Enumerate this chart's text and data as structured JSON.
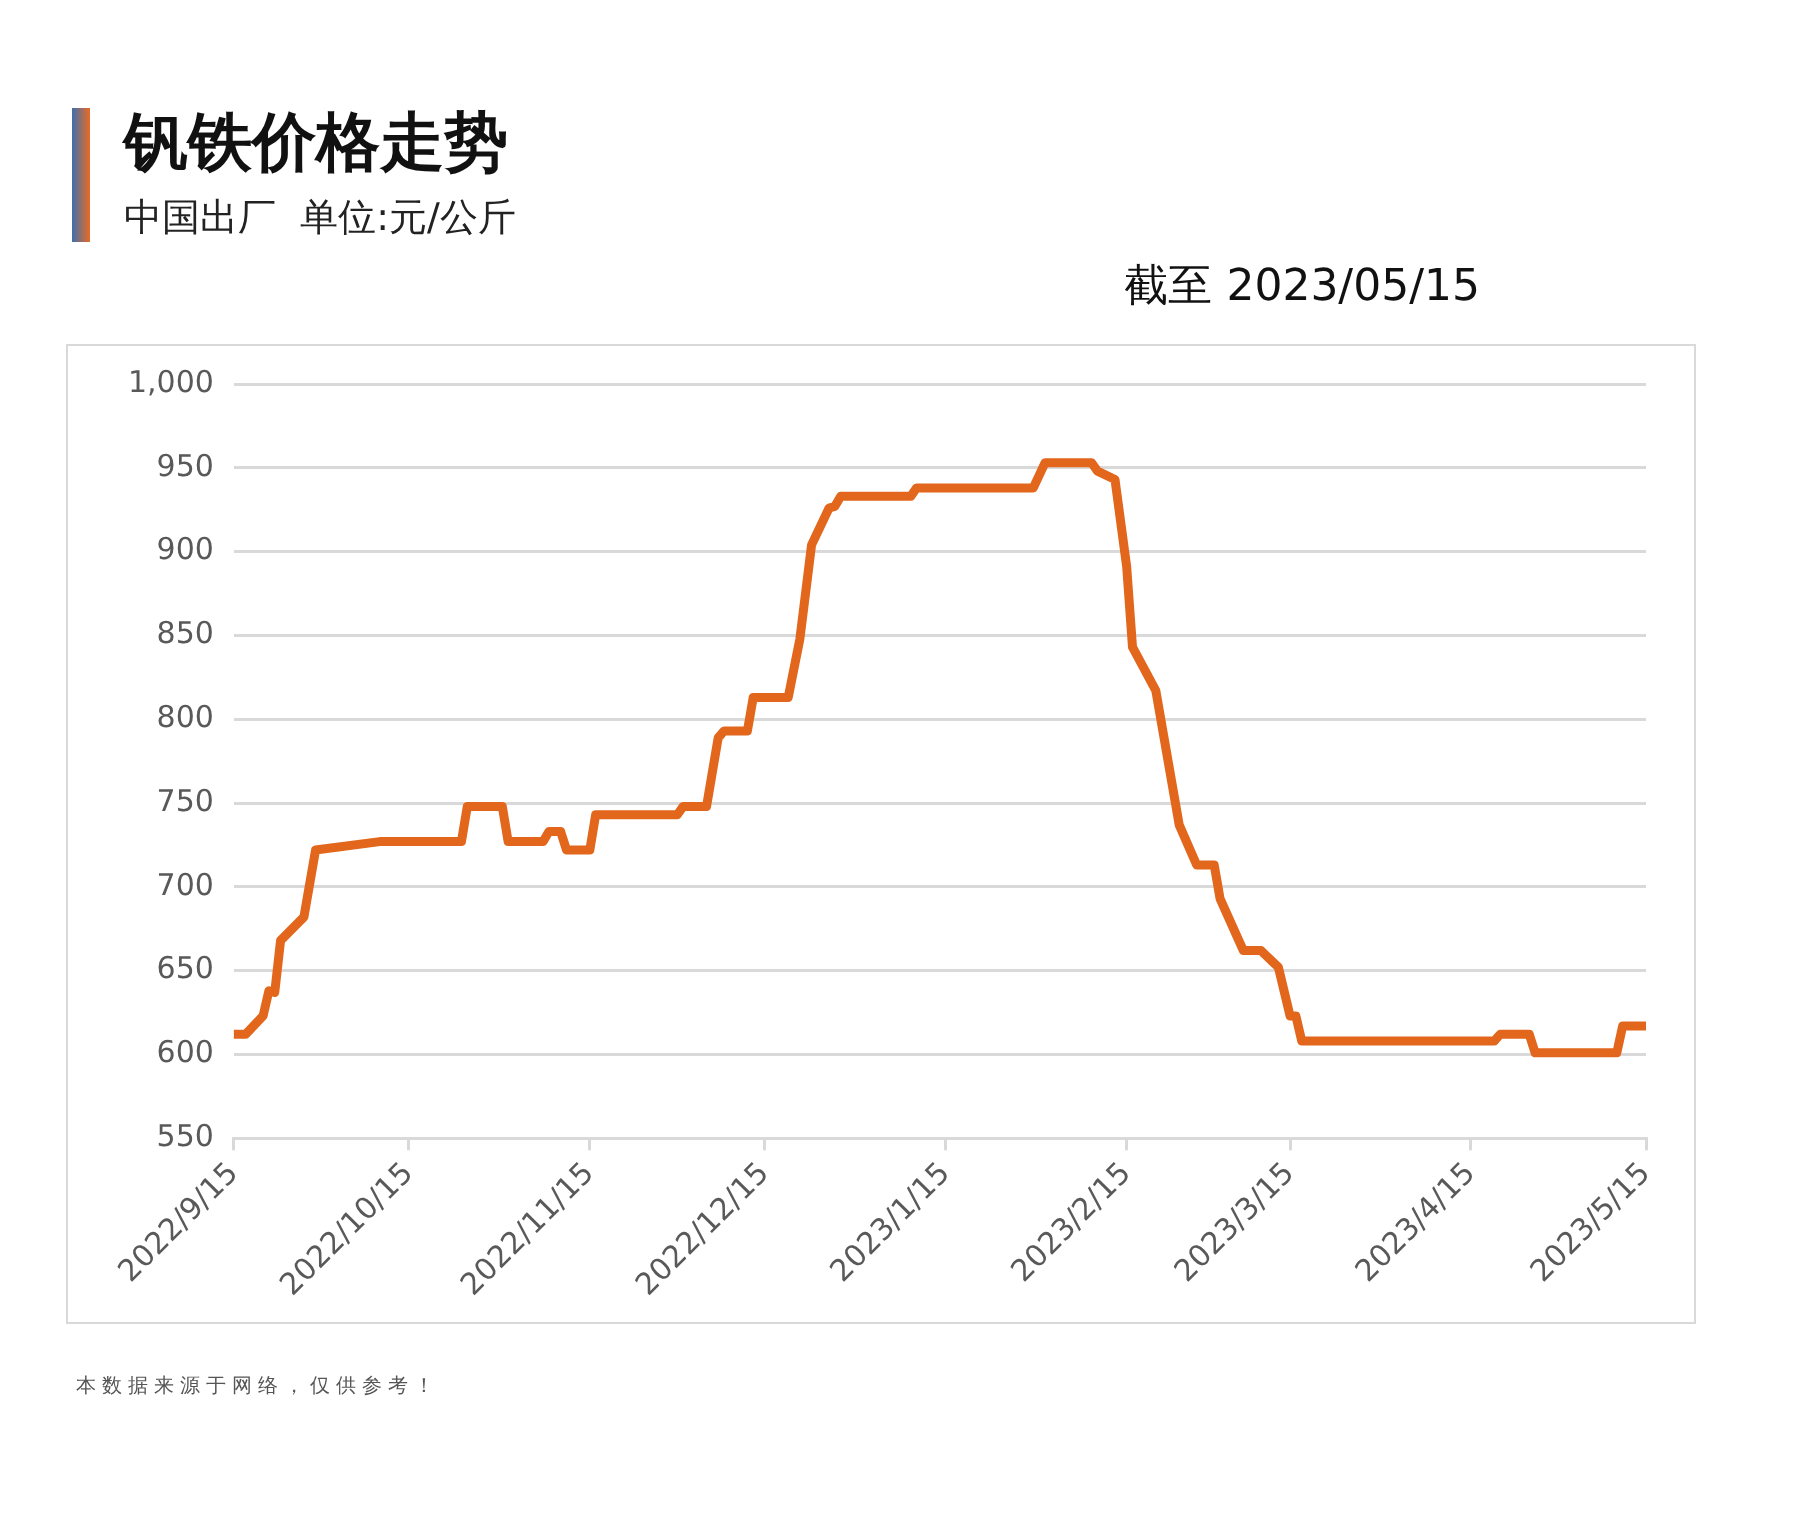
{
  "chart_data": {
    "type": "line",
    "title": "钒铁价格走势",
    "subtitle": "中国出厂  单位:元/公斤",
    "annotations": [
      "截至 2023/05/15",
      "本数据来源于网络，仅供参考！"
    ],
    "x": [
      "2022-09-15",
      "2022-09-17",
      "2022-09-20",
      "2022-09-21",
      "2022-09-22",
      "2022-09-23",
      "2022-09-27",
      "2022-09-29",
      "2022-10-10",
      "2022-10-24",
      "2022-10-25",
      "2022-10-31",
      "2022-11-01",
      "2022-11-07",
      "2022-11-08",
      "2022-11-10",
      "2022-11-11",
      "2022-11-15",
      "2022-11-16",
      "2022-11-30",
      "2022-12-01",
      "2022-12-05",
      "2022-12-07",
      "2022-12-08",
      "2022-12-12",
      "2022-12-13",
      "2022-12-19",
      "2022-12-21",
      "2022-12-23",
      "2022-12-26",
      "2022-12-27",
      "2022-12-28",
      "2023-01-09",
      "2023-01-10",
      "2023-01-30",
      "2023-02-01",
      "2023-02-09",
      "2023-02-10",
      "2023-02-13",
      "2023-02-15",
      "2023-02-16",
      "2023-02-20",
      "2023-02-24",
      "2023-02-27",
      "2023-03-02",
      "2023-03-03",
      "2023-03-07",
      "2023-03-10",
      "2023-03-13",
      "2023-03-15",
      "2023-03-16",
      "2023-03-17",
      "2023-04-19",
      "2023-04-20",
      "2023-04-25",
      "2023-04-26",
      "2023-05-10",
      "2023-05-11",
      "2023-05-15"
    ],
    "series": [
      {
        "color": "#e2661c",
        "values": [
          612,
          612,
          623,
          638,
          637,
          668,
          682,
          722,
          727,
          727,
          748,
          748,
          727,
          727,
          733,
          733,
          722,
          722,
          743,
          743,
          748,
          748,
          789,
          793,
          793,
          813,
          813,
          848,
          904,
          926,
          927,
          933,
          933,
          938,
          938,
          953,
          953,
          948,
          943,
          891,
          843,
          817,
          737,
          713,
          713,
          693,
          662,
          662,
          652,
          623,
          623,
          608,
          608,
          612,
          612,
          601,
          601,
          617,
          617
        ]
      }
    ],
    "xlim": [
      "2022-09-15",
      "2023-05-15"
    ],
    "xticks": [
      {
        "value": "2022-09-15",
        "label": "2022/9/15"
      },
      {
        "value": "2022-10-15",
        "label": "2022/10/15"
      },
      {
        "value": "2022-11-15",
        "label": "2022/11/15"
      },
      {
        "value": "2022-12-15",
        "label": "2022/12/15"
      },
      {
        "value": "2023-01-15",
        "label": "2023/1/15"
      },
      {
        "value": "2023-02-15",
        "label": "2023/2/15"
      },
      {
        "value": "2023-03-15",
        "label": "2023/3/15"
      },
      {
        "value": "2023-04-15",
        "label": "2023/4/15"
      },
      {
        "value": "2023-05-15",
        "label": "2023/5/15"
      }
    ],
    "ylim": [
      550,
      1000
    ],
    "yticks": [
      550,
      600,
      650,
      700,
      750,
      800,
      850,
      900,
      950,
      {
        "value": 1000,
        "label": "1,000"
      }
    ],
    "grid": "y",
    "legend": false,
    "marker": "none",
    "line_style": "solid"
  }
}
